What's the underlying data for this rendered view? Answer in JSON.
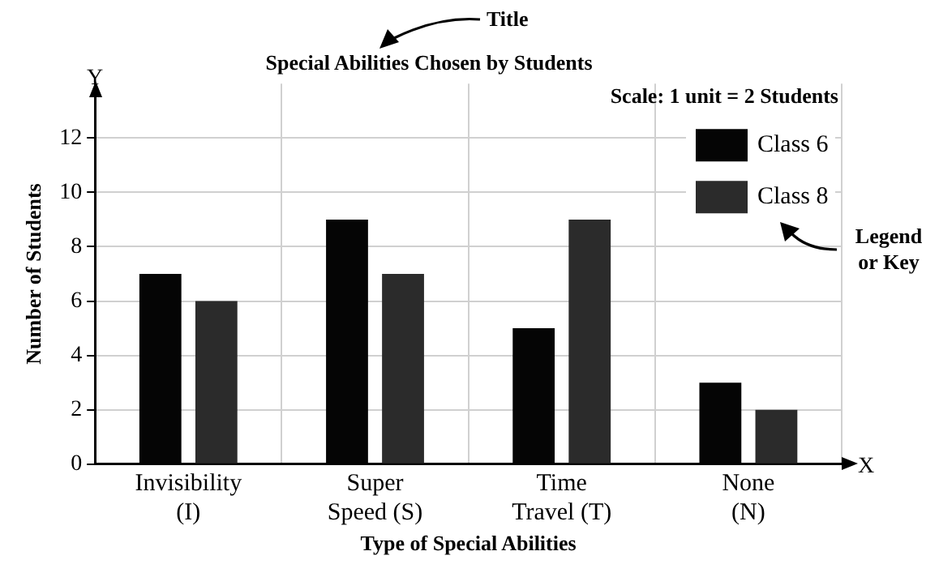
{
  "chart_data": {
    "type": "bar",
    "title": "Special Abilities Chosen by Students",
    "xlabel": "Type of Special Abilities",
    "ylabel": "Number of Students",
    "categories": [
      "Invisibility (I)",
      "Super Speed (S)",
      "Time Travel (T)",
      "None (N)"
    ],
    "series": [
      {
        "name": "Class 6",
        "color": "#050505",
        "values": [
          7,
          9,
          5,
          3
        ]
      },
      {
        "name": "Class 8",
        "color": "#2b2b2b",
        "values": [
          6,
          7,
          9,
          2
        ]
      }
    ],
    "ylim": [
      0,
      14
    ],
    "yticks": [
      0,
      2,
      4,
      6,
      8,
      10,
      12
    ],
    "grid": true,
    "legend": "top right",
    "annotations": [
      "Title",
      "Scale: 1 unit = 2 Students",
      "Legend or Key",
      "Y",
      "X"
    ]
  }
}
